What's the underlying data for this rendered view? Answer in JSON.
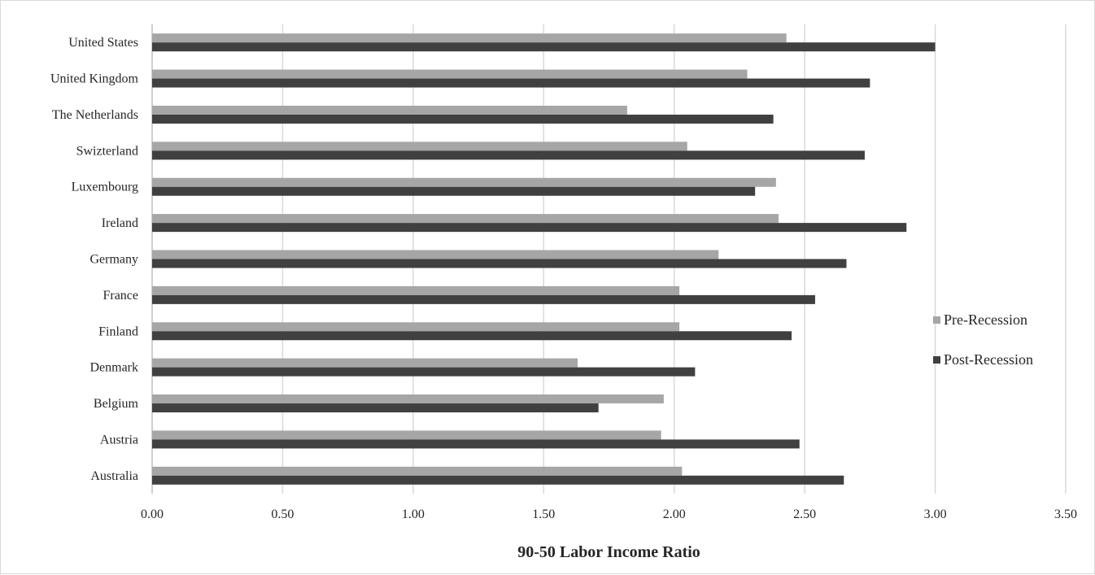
{
  "chart_data": {
    "type": "bar",
    "orientation": "horizontal",
    "categories": [
      "United States",
      "United Kingdom",
      "The Netherlands",
      "Swizterland",
      "Luxembourg",
      "Ireland",
      "Germany",
      "France",
      "Finland",
      "Denmark",
      "Belgium",
      "Austria",
      "Australia"
    ],
    "series": [
      {
        "name": "Pre-Recession",
        "color": "#a6a6a6",
        "values": [
          2.43,
          2.28,
          1.82,
          2.05,
          2.39,
          2.4,
          2.17,
          2.02,
          2.02,
          1.63,
          1.96,
          1.95,
          2.03
        ]
      },
      {
        "name": "Post-Recession",
        "color": "#404040",
        "values": [
          3.0,
          2.75,
          2.38,
          2.73,
          2.31,
          2.89,
          2.66,
          2.54,
          2.45,
          2.08,
          1.71,
          2.48,
          2.65
        ]
      }
    ],
    "xlabel": "90-50 Labor Income Ratio",
    "ylabel": "",
    "xlim": [
      0,
      3.5
    ],
    "xticks": [
      "0.00",
      "0.50",
      "1.00",
      "1.50",
      "2.00",
      "2.50",
      "3.00",
      "3.50"
    ],
    "xtick_values": [
      0,
      0.5,
      1.0,
      1.5,
      2.0,
      2.5,
      3.0,
      3.5
    ],
    "grid": "vertical",
    "legend_position": "right"
  }
}
